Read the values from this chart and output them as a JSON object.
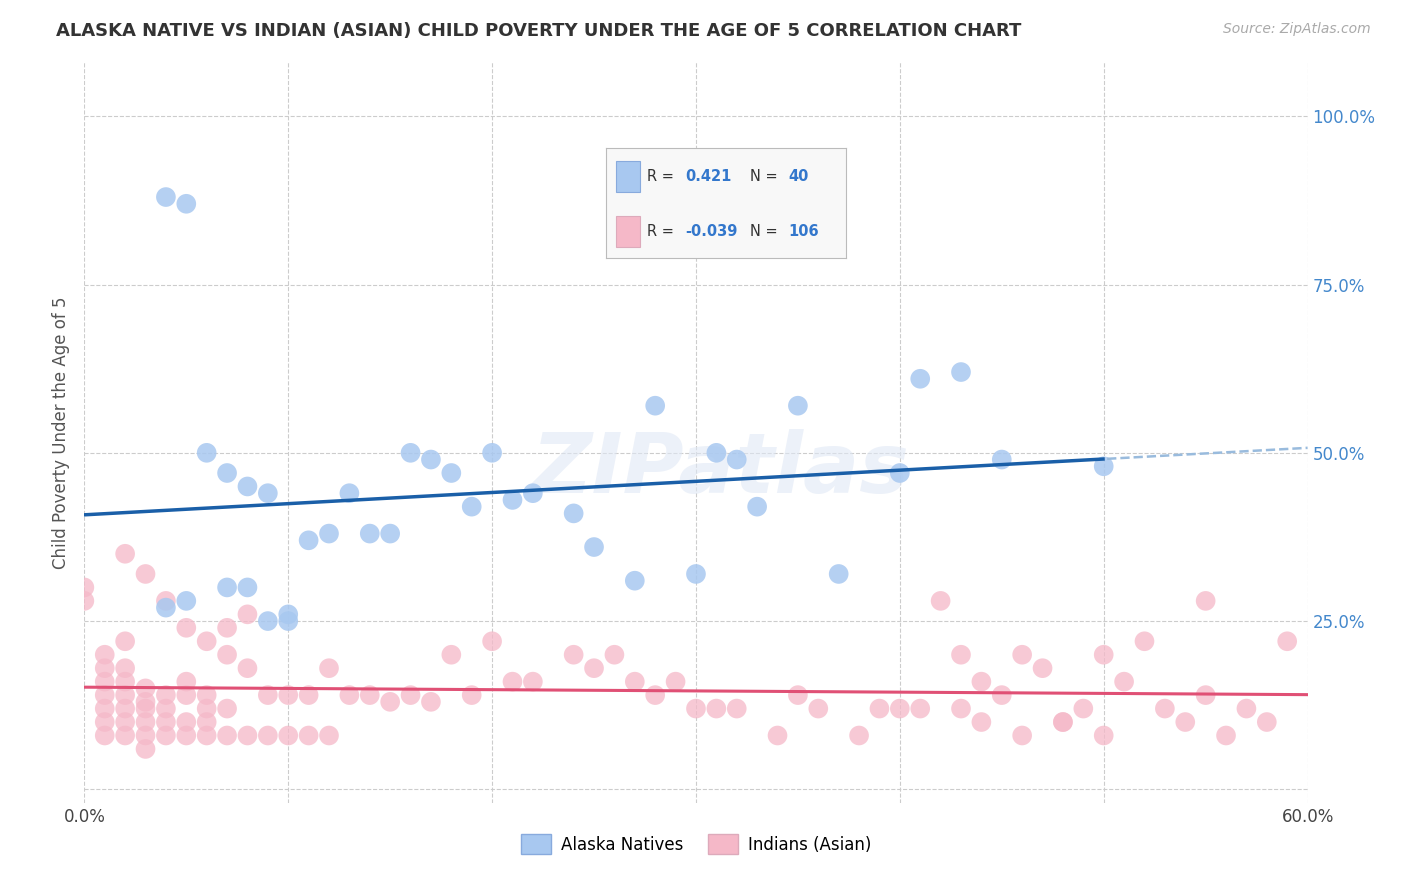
{
  "title": "ALASKA NATIVE VS INDIAN (ASIAN) CHILD POVERTY UNDER THE AGE OF 5 CORRELATION CHART",
  "source": "Source: ZipAtlas.com",
  "ylabel": "Child Poverty Under the Age of 5",
  "xlim": [
    0.0,
    0.6
  ],
  "ylim": [
    -0.02,
    1.08
  ],
  "xtick_vals": [
    0.0,
    0.1,
    0.2,
    0.3,
    0.4,
    0.5,
    0.6
  ],
  "xtick_labels": [
    "0.0%",
    "",
    "",
    "",
    "",
    "",
    "60.0%"
  ],
  "ytick_vals": [
    0.0,
    0.25,
    0.5,
    0.75,
    1.0
  ],
  "ytick_labels": [
    "",
    "25.0%",
    "50.0%",
    "75.0%",
    "100.0%"
  ],
  "alaska_color": "#a8c8f0",
  "alaska_line_color": "#1a5fa8",
  "alaska_line_dash_color": "#99bbdd",
  "indian_color": "#f5b8c8",
  "indian_line_color": "#e05075",
  "bg_color": "#ffffff",
  "grid_color": "#cccccc",
  "watermark": "ZIPatlas",
  "alaska_x": [
    0.04,
    0.05,
    0.07,
    0.08,
    0.09,
    0.1,
    0.1,
    0.11,
    0.12,
    0.13,
    0.14,
    0.15,
    0.16,
    0.17,
    0.18,
    0.19,
    0.21,
    0.22,
    0.24,
    0.25,
    0.27,
    0.28,
    0.31,
    0.32,
    0.33,
    0.35,
    0.37,
    0.4,
    0.41,
    0.43,
    0.04,
    0.05,
    0.06,
    0.07,
    0.08,
    0.09,
    0.2,
    0.3,
    0.45,
    0.5
  ],
  "alaska_y": [
    0.27,
    0.28,
    0.3,
    0.3,
    0.25,
    0.25,
    0.26,
    0.37,
    0.38,
    0.44,
    0.38,
    0.38,
    0.5,
    0.49,
    0.47,
    0.42,
    0.43,
    0.44,
    0.41,
    0.36,
    0.31,
    0.57,
    0.5,
    0.49,
    0.42,
    0.57,
    0.32,
    0.47,
    0.61,
    0.62,
    0.88,
    0.87,
    0.5,
    0.47,
    0.45,
    0.44,
    0.5,
    0.32,
    0.49,
    0.48
  ],
  "indian_x": [
    0.0,
    0.0,
    0.01,
    0.01,
    0.01,
    0.01,
    0.01,
    0.01,
    0.01,
    0.02,
    0.02,
    0.02,
    0.02,
    0.02,
    0.02,
    0.02,
    0.03,
    0.03,
    0.03,
    0.03,
    0.03,
    0.03,
    0.04,
    0.04,
    0.04,
    0.04,
    0.05,
    0.05,
    0.05,
    0.05,
    0.06,
    0.06,
    0.06,
    0.06,
    0.07,
    0.07,
    0.07,
    0.08,
    0.08,
    0.09,
    0.09,
    0.1,
    0.1,
    0.11,
    0.11,
    0.12,
    0.12,
    0.13,
    0.14,
    0.15,
    0.16,
    0.17,
    0.18,
    0.19,
    0.2,
    0.21,
    0.22,
    0.24,
    0.25,
    0.26,
    0.27,
    0.28,
    0.29,
    0.3,
    0.31,
    0.32,
    0.34,
    0.35,
    0.36,
    0.38,
    0.39,
    0.4,
    0.41,
    0.43,
    0.44,
    0.45,
    0.46,
    0.48,
    0.49,
    0.5,
    0.52,
    0.53,
    0.54,
    0.55,
    0.56,
    0.57,
    0.58,
    0.42,
    0.43,
    0.44,
    0.46,
    0.47,
    0.48,
    0.5,
    0.51,
    0.55,
    0.59,
    0.02,
    0.03,
    0.04,
    0.05,
    0.06,
    0.07,
    0.08
  ],
  "indian_y": [
    0.3,
    0.28,
    0.2,
    0.18,
    0.16,
    0.14,
    0.12,
    0.1,
    0.08,
    0.22,
    0.18,
    0.16,
    0.14,
    0.12,
    0.1,
    0.08,
    0.15,
    0.13,
    0.12,
    0.1,
    0.08,
    0.06,
    0.14,
    0.12,
    0.1,
    0.08,
    0.16,
    0.14,
    0.1,
    0.08,
    0.14,
    0.12,
    0.1,
    0.08,
    0.2,
    0.12,
    0.08,
    0.18,
    0.08,
    0.14,
    0.08,
    0.14,
    0.08,
    0.14,
    0.08,
    0.18,
    0.08,
    0.14,
    0.14,
    0.13,
    0.14,
    0.13,
    0.2,
    0.14,
    0.22,
    0.16,
    0.16,
    0.2,
    0.18,
    0.2,
    0.16,
    0.14,
    0.16,
    0.12,
    0.12,
    0.12,
    0.08,
    0.14,
    0.12,
    0.08,
    0.12,
    0.12,
    0.12,
    0.12,
    0.1,
    0.14,
    0.08,
    0.1,
    0.12,
    0.08,
    0.22,
    0.12,
    0.1,
    0.14,
    0.08,
    0.12,
    0.1,
    0.28,
    0.2,
    0.16,
    0.2,
    0.18,
    0.1,
    0.2,
    0.16,
    0.28,
    0.22,
    0.35,
    0.32,
    0.28,
    0.24,
    0.22,
    0.24,
    0.26
  ]
}
